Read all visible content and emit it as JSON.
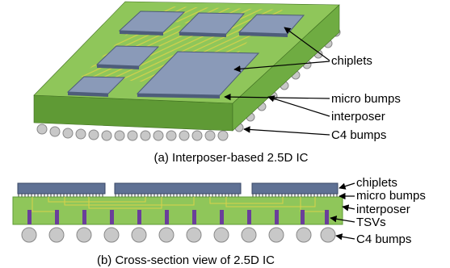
{
  "top_view": {
    "labels": {
      "chiplets": "chiplets",
      "micro_bumps": "micro bumps",
      "interposer": "interposer",
      "c4_bumps": "C4 bumps"
    },
    "caption": "(a) Interposer-based 2.5D IC"
  },
  "cross_section": {
    "labels": {
      "chiplets": "chiplets",
      "micro_bumps": "micro bumps",
      "interposer": "interposer",
      "tsvs": "TSVs",
      "c4_bumps": "C4 bumps"
    },
    "caption": "(b) Cross-section view of 2.5D IC"
  },
  "colors": {
    "interposer_top": "#8fc65a",
    "interposer_front": "#5f9a35",
    "interposer_side": "#6fac42",
    "chiplet": "#8a9ab8",
    "chiplet_edge": "#4e5d7a",
    "wire": "#d9d24a",
    "bump": "#c8c8c8",
    "tsv": "#6a3f9a"
  }
}
